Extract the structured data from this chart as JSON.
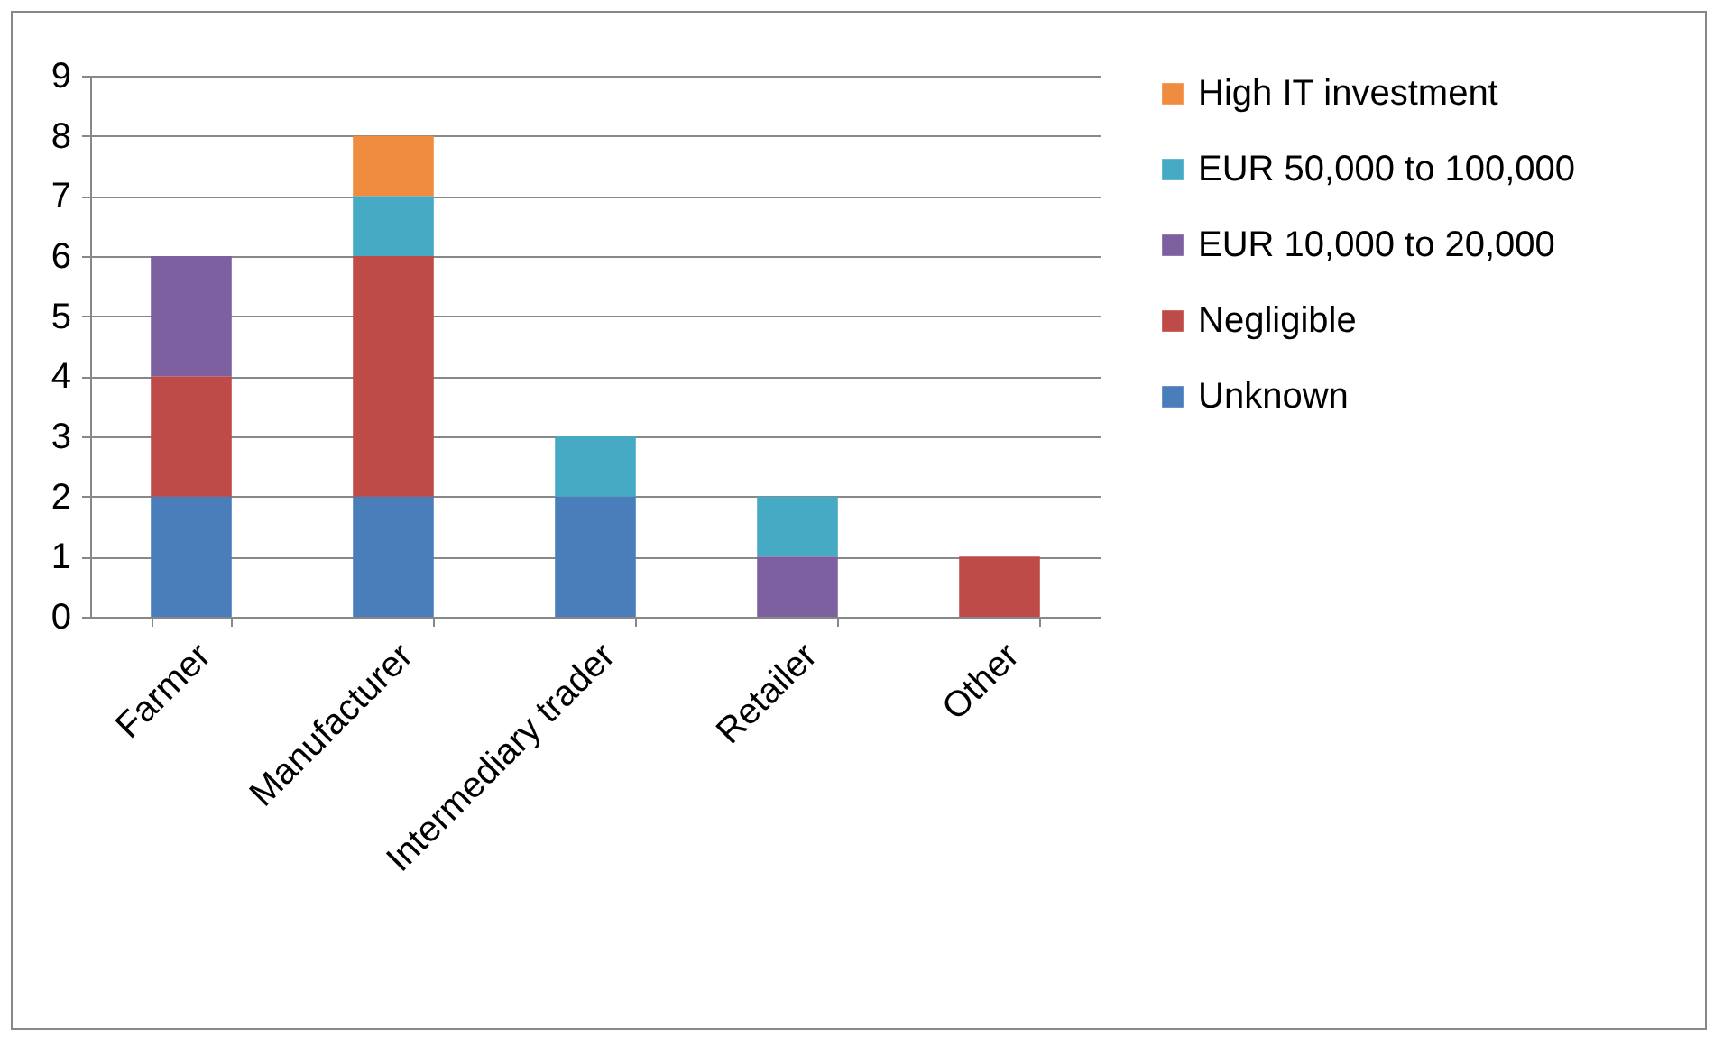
{
  "chart_data": {
    "type": "bar",
    "stacked": true,
    "categories": [
      "Farmer",
      "Manufacturer",
      "Intermediary trader",
      "Retailer",
      "Other"
    ],
    "series": [
      {
        "name": "Unknown",
        "color": "#4a7ebb",
        "values": [
          2,
          2,
          2,
          0,
          0
        ]
      },
      {
        "name": "Negligible",
        "color": "#be4b48",
        "values": [
          2,
          4,
          0,
          0,
          1
        ]
      },
      {
        "name": "EUR 10,000 to 20,000",
        "color": "#7d60a0",
        "values": [
          2,
          0,
          0,
          1,
          0
        ]
      },
      {
        "name": "EUR 50,000  to 100,000",
        "color": "#46aac5",
        "values": [
          0,
          1,
          1,
          1,
          0
        ]
      },
      {
        "name": "High IT investment",
        "color": "#f08c40",
        "values": [
          0,
          1,
          0,
          0,
          0
        ]
      }
    ],
    "ylim": [
      0,
      9
    ],
    "yticks": [
      0,
      1,
      2,
      3,
      4,
      5,
      6,
      7,
      8,
      9
    ],
    "grid": "y",
    "legend": "right"
  }
}
